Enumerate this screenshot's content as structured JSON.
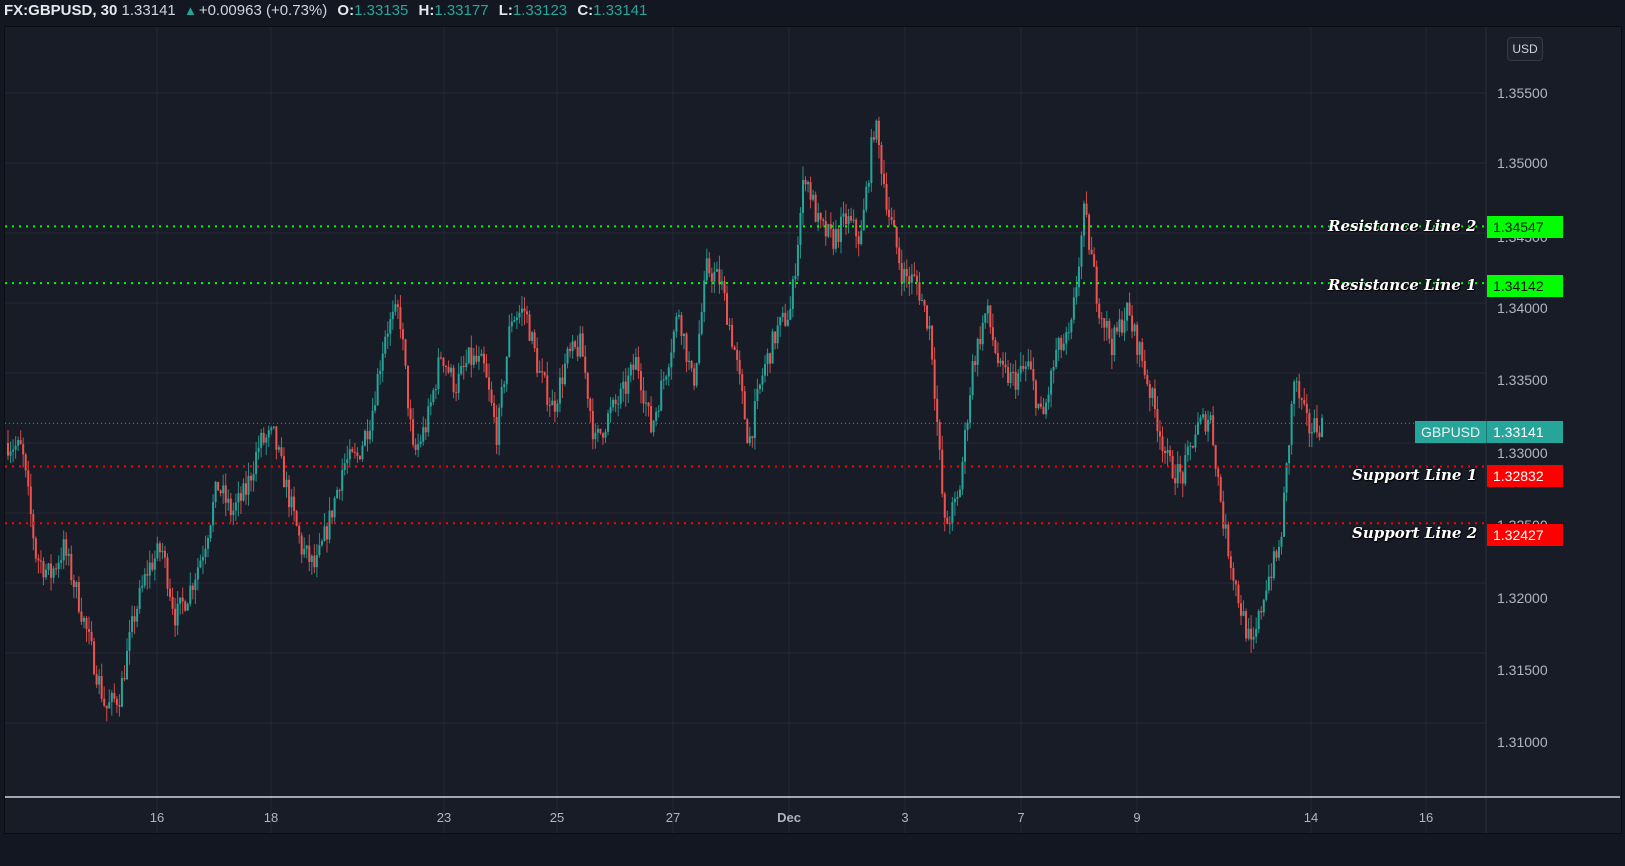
{
  "header": {
    "symbol": "FX:GBPUSD, 30",
    "last": "1.33141",
    "change_icon": "triangle-up-icon",
    "change": "+0.00963 (+0.73%)",
    "ohlc": [
      {
        "key": "O:",
        "value": "1.33135"
      },
      {
        "key": "H:",
        "value": "1.33177"
      },
      {
        "key": "L:",
        "value": "1.33123"
      },
      {
        "key": "C:",
        "value": "1.33141"
      }
    ]
  },
  "currency_button": "USD",
  "colors": {
    "background": "#131722",
    "pane": "#181c27",
    "grid": "#242835",
    "up": "#26a69a",
    "down": "#ef5350",
    "resistance": "#00ff00",
    "support": "#ff0000",
    "last_price": "#26a69a"
  },
  "price_axis": {
    "labels": [
      "1.35500",
      "1.35000",
      "1.34500",
      "1.34000",
      "1.33500",
      "1.33000",
      "1.32500",
      "1.32000",
      "1.31500",
      "1.31000"
    ]
  },
  "time_axis": {
    "labels": [
      "16",
      "18",
      "23",
      "25",
      "27",
      "Dec",
      "3",
      "7",
      "9",
      "14",
      "16"
    ]
  },
  "last_price_tag": {
    "symbol": "GBPUSD",
    "value": "1.33141"
  },
  "levels": [
    {
      "name": "Resistance Line 2",
      "value": "1.34547",
      "type": "resistance"
    },
    {
      "name": "Resistance Line 1",
      "value": "1.34142",
      "type": "resistance"
    },
    {
      "name": "Support Line 1",
      "value": "1.32832",
      "type": "support"
    },
    {
      "name": "Support Line 2",
      "value": "1.32427",
      "type": "support"
    }
  ],
  "chart_data": {
    "type": "candlestick",
    "title": "FX:GBPUSD, 30",
    "timeframe": "30 min",
    "xlabel": "",
    "ylabel": "USD",
    "ylim": [
      1.3055,
      1.36
    ],
    "grid": true,
    "x_ticks": [
      "16",
      "18",
      "23",
      "25",
      "27",
      "Dec",
      "3",
      "7",
      "9",
      "14",
      "16"
    ],
    "y_ticks": [
      1.355,
      1.35,
      1.345,
      1.34,
      1.335,
      1.33,
      1.325,
      1.32,
      1.315,
      1.31
    ],
    "last": {
      "open": 1.33135,
      "high": 1.33177,
      "low": 1.33123,
      "close": 1.33141,
      "change": 0.00963,
      "change_pct": 0.73
    },
    "horizontal_lines": [
      {
        "label": "Resistance Line 2",
        "value": 1.34547,
        "color": "#00ff00",
        "style": "dotted"
      },
      {
        "label": "Resistance Line 1",
        "value": 1.34142,
        "color": "#00ff00",
        "style": "dotted"
      },
      {
        "label": "Support Line 1",
        "value": 1.32832,
        "color": "#ff0000",
        "style": "dotted"
      },
      {
        "label": "Support Line 2",
        "value": 1.32427,
        "color": "#ff0000",
        "style": "dotted"
      }
    ],
    "approx_price_path": [
      {
        "x": "Nov 12",
        "price": 1.33
      },
      {
        "x": "Nov 12",
        "price": 1.3295
      },
      {
        "x": "Nov 13",
        "price": 1.322
      },
      {
        "x": "Nov 13",
        "price": 1.3205
      },
      {
        "x": "Nov 13",
        "price": 1.3225
      },
      {
        "x": "Nov 13",
        "price": 1.319
      },
      {
        "x": "Nov 14",
        "price": 1.315
      },
      {
        "x": "Nov 14",
        "price": 1.311
      },
      {
        "x": "Nov 15",
        "price": 1.312
      },
      {
        "x": "Nov 15",
        "price": 1.3175
      },
      {
        "x": "Nov 16",
        "price": 1.321
      },
      {
        "x": "Nov 16",
        "price": 1.3225
      },
      {
        "x": "Nov 17",
        "price": 1.3175
      },
      {
        "x": "Nov 17",
        "price": 1.3195
      },
      {
        "x": "Nov 17",
        "price": 1.3225
      },
      {
        "x": "Nov 18",
        "price": 1.327
      },
      {
        "x": "Nov 18",
        "price": 1.325
      },
      {
        "x": "Nov 18",
        "price": 1.3265
      },
      {
        "x": "Nov 19",
        "price": 1.33
      },
      {
        "x": "Nov 19",
        "price": 1.3305
      },
      {
        "x": "Nov 19",
        "price": 1.3265
      },
      {
        "x": "Nov 20",
        "price": 1.3225
      },
      {
        "x": "Nov 20",
        "price": 1.321
      },
      {
        "x": "Nov 20",
        "price": 1.3245
      },
      {
        "x": "Nov 22",
        "price": 1.3285
      },
      {
        "x": "Nov 22",
        "price": 1.329
      },
      {
        "x": "Nov 23",
        "price": 1.332
      },
      {
        "x": "Nov 23",
        "price": 1.338
      },
      {
        "x": "Nov 23",
        "price": 1.3395
      },
      {
        "x": "Nov 23",
        "price": 1.329
      },
      {
        "x": "Nov 24",
        "price": 1.3315
      },
      {
        "x": "Nov 24",
        "price": 1.3365
      },
      {
        "x": "Nov 24",
        "price": 1.334
      },
      {
        "x": "Nov 25",
        "price": 1.336
      },
      {
        "x": "Nov 25",
        "price": 1.3355
      },
      {
        "x": "Nov 25",
        "price": 1.3305
      },
      {
        "x": "Nov 26",
        "price": 1.339
      },
      {
        "x": "Nov 26",
        "price": 1.3395
      },
      {
        "x": "Nov 26",
        "price": 1.335
      },
      {
        "x": "Nov 26",
        "price": 1.3325
      },
      {
        "x": "Nov 27",
        "price": 1.336
      },
      {
        "x": "Nov 27",
        "price": 1.337
      },
      {
        "x": "Nov 28",
        "price": 1.33
      },
      {
        "x": "Nov 28",
        "price": 1.332
      },
      {
        "x": "Nov 29",
        "price": 1.3335
      },
      {
        "x": "Nov 29",
        "price": 1.336
      },
      {
        "x": "Nov 29",
        "price": 1.331
      },
      {
        "x": "Nov 30",
        "price": 1.335
      },
      {
        "x": "Nov 30",
        "price": 1.3395
      },
      {
        "x": "Dec 1",
        "price": 1.334
      },
      {
        "x": "Dec 1",
        "price": 1.3425
      },
      {
        "x": "Dec 1",
        "price": 1.3415
      },
      {
        "x": "Dec 2",
        "price": 1.3365
      },
      {
        "x": "Dec 2",
        "price": 1.33
      },
      {
        "x": "Dec 2",
        "price": 1.335
      },
      {
        "x": "Dec 2",
        "price": 1.338
      },
      {
        "x": "Dec 3",
        "price": 1.3395
      },
      {
        "x": "Dec 3",
        "price": 1.3495
      },
      {
        "x": "Dec 4",
        "price": 1.3455
      },
      {
        "x": "Dec 4",
        "price": 1.3445
      },
      {
        "x": "Dec 5",
        "price": 1.346
      },
      {
        "x": "Dec 5",
        "price": 1.3445
      },
      {
        "x": "Dec 6",
        "price": 1.353
      },
      {
        "x": "Dec 6",
        "price": 1.3465
      },
      {
        "x": "Dec 6",
        "price": 1.342
      },
      {
        "x": "Dec 7",
        "price": 1.3415
      },
      {
        "x": "Dec 7",
        "price": 1.338
      },
      {
        "x": "Dec 7",
        "price": 1.324
      },
      {
        "x": "Dec 8",
        "price": 1.326
      },
      {
        "x": "Dec 8",
        "price": 1.3355
      },
      {
        "x": "Dec 8",
        "price": 1.3395
      },
      {
        "x": "Dec 8",
        "price": 1.335
      },
      {
        "x": "Dec 9",
        "price": 1.3345
      },
      {
        "x": "Dec 9",
        "price": 1.3355
      },
      {
        "x": "Dec 9",
        "price": 1.3315
      },
      {
        "x": "Dec 9",
        "price": 1.3365
      },
      {
        "x": "Dec 10",
        "price": 1.3375
      },
      {
        "x": "Dec 10",
        "price": 1.3465
      },
      {
        "x": "Dec 10",
        "price": 1.34
      },
      {
        "x": "Dec 10",
        "price": 1.337
      },
      {
        "x": "Dec 11",
        "price": 1.3395
      },
      {
        "x": "Dec 11",
        "price": 1.3365
      },
      {
        "x": "Dec 11",
        "price": 1.3325
      },
      {
        "x": "Dec 12",
        "price": 1.3285
      },
      {
        "x": "Dec 12",
        "price": 1.3275
      },
      {
        "x": "Dec 12",
        "price": 1.331
      },
      {
        "x": "Dec 13",
        "price": 1.332
      },
      {
        "x": "Dec 13",
        "price": 1.324
      },
      {
        "x": "Dec 13",
        "price": 1.319
      },
      {
        "x": "Dec 13",
        "price": 1.315
      },
      {
        "x": "Dec 13",
        "price": 1.32
      },
      {
        "x": "Dec 13",
        "price": 1.3225
      },
      {
        "x": "Dec 14",
        "price": 1.3345
      },
      {
        "x": "Dec 14",
        "price": 1.331
      },
      {
        "x": "Dec 14",
        "price": 1.3314
      }
    ]
  }
}
